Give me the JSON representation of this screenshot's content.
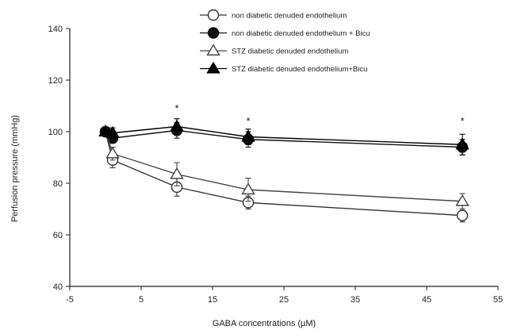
{
  "chart_data": {
    "type": "line",
    "xlabel": "GABA concentrations (µM)",
    "ylabel": "Perfusion pressure (mmHg)",
    "xlim": [
      -5,
      55
    ],
    "ylim": [
      40,
      140
    ],
    "xticks": [
      -5,
      5,
      15,
      25,
      35,
      45,
      55
    ],
    "yticks": [
      40,
      60,
      80,
      100,
      120,
      140
    ],
    "legend_position": "top-right",
    "grid": false,
    "series": [
      {
        "name": "non diabetic denuded endothelium",
        "marker": "open-circle",
        "color": "#333333",
        "x": [
          0,
          1,
          10,
          20,
          50
        ],
        "y": [
          100,
          89,
          78.5,
          72.5,
          67.5
        ],
        "error": [
          0,
          3,
          3.5,
          2.5,
          2.5
        ]
      },
      {
        "name": "non diabetic denuded endothelium + Bicu",
        "marker": "filled-circle",
        "color": "#111111",
        "x": [
          0,
          1,
          10,
          20,
          50
        ],
        "y": [
          100,
          97.5,
          100.5,
          97,
          94
        ],
        "error": [
          0,
          2,
          3,
          3,
          3
        ]
      },
      {
        "name": "STZ diabetic denuded endothelium",
        "marker": "open-triangle",
        "color": "#444444",
        "x": [
          0,
          1,
          10,
          20,
          50
        ],
        "y": [
          100,
          91.5,
          83.5,
          77.5,
          73
        ],
        "error": [
          0,
          2.5,
          4.5,
          4.5,
          3
        ]
      },
      {
        "name": "STZ diabetic denuded endothelium+Bicu",
        "marker": "filled-triangle",
        "color": "#000000",
        "x": [
          0,
          1,
          10,
          20,
          50
        ],
        "y": [
          100,
          99.5,
          102,
          98,
          95
        ],
        "error": [
          0,
          2,
          3,
          3,
          4
        ]
      }
    ],
    "annotations": [
      {
        "text": "*",
        "x": 10,
        "y": 109
      },
      {
        "text": "*",
        "x": 20,
        "y": 104
      },
      {
        "text": "*",
        "x": 50,
        "y": 104
      }
    ]
  }
}
